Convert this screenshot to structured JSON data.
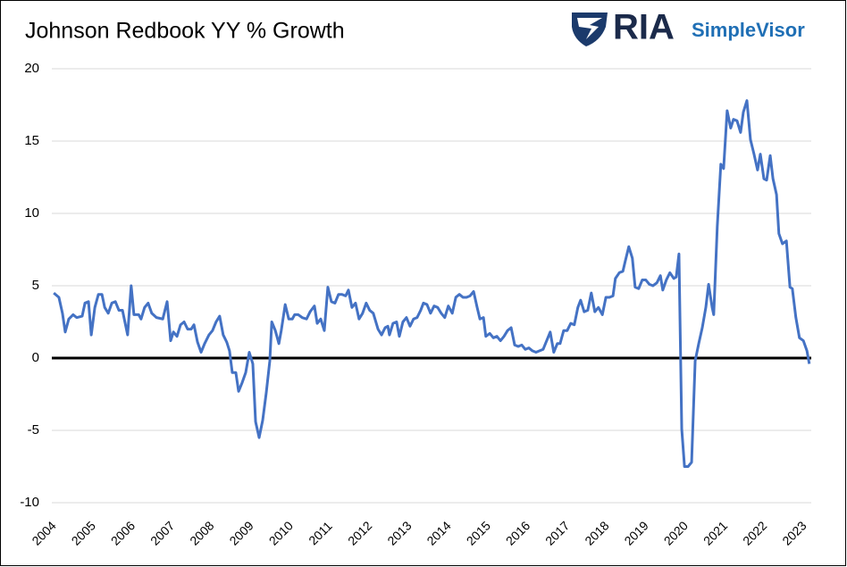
{
  "logo": {
    "primary": "RIA",
    "secondary": "SimpleVisor"
  },
  "chart_data": {
    "type": "line",
    "title": "Johnson Redbook YY % Growth",
    "color": "#4472c4",
    "x": [
      2004.23,
      2004.36,
      2004.45,
      2004.52,
      2004.61,
      2004.72,
      2004.81,
      2004.95,
      2005.02,
      2005.11,
      2005.18,
      2005.27,
      2005.36,
      2005.45,
      2005.52,
      2005.61,
      2005.7,
      2005.79,
      2005.88,
      2005.97,
      2006.1,
      2006.19,
      2006.26,
      2006.38,
      2006.44,
      2006.53,
      2006.62,
      2006.71,
      2006.83,
      2006.99,
      2007.1,
      2007.19,
      2007.26,
      2007.35,
      2007.44,
      2007.53,
      2007.62,
      2007.71,
      2007.78,
      2007.87,
      2007.96,
      2008.05,
      2008.16,
      2008.25,
      2008.34,
      2008.43,
      2008.52,
      2008.61,
      2008.68,
      2008.75,
      2008.84,
      2008.91,
      2009.0,
      2009.09,
      2009.18,
      2009.27,
      2009.34,
      2009.43,
      2009.52,
      2009.61,
      2009.7,
      2009.75,
      2009.84,
      2009.93,
      2009.99,
      2010.09,
      2010.18,
      2010.27,
      2010.33,
      2010.42,
      2010.52,
      2010.63,
      2010.72,
      2010.83,
      2010.9,
      2010.99,
      2011.08,
      2011.17,
      2011.26,
      2011.35,
      2011.44,
      2011.53,
      2011.62,
      2011.69,
      2011.78,
      2011.87,
      2011.96,
      2012.05,
      2012.14,
      2012.23,
      2012.32,
      2012.44,
      2012.53,
      2012.62,
      2012.69,
      2012.73,
      2012.82,
      2012.91,
      2012.98,
      2013.07,
      2013.16,
      2013.25,
      2013.34,
      2013.43,
      2013.52,
      2013.59,
      2013.68,
      2013.77,
      2013.86,
      2013.95,
      2014.04,
      2014.13,
      2014.22,
      2014.32,
      2014.41,
      2014.5,
      2014.59,
      2014.68,
      2014.77,
      2014.86,
      2014.95,
      2015.02,
      2015.11,
      2015.17,
      2015.27,
      2015.36,
      2015.45,
      2015.54,
      2015.63,
      2015.72,
      2015.81,
      2015.9,
      2015.99,
      2016.08,
      2016.17,
      2016.26,
      2016.35,
      2016.44,
      2016.53,
      2016.62,
      2016.71,
      2016.8,
      2016.89,
      2016.98,
      2017.05,
      2017.14,
      2017.23,
      2017.32,
      2017.41,
      2017.5,
      2017.57,
      2017.66,
      2017.75,
      2017.84,
      2017.93,
      2018.02,
      2018.12,
      2018.21,
      2018.3,
      2018.39,
      2018.45,
      2018.55,
      2018.64,
      2018.7,
      2018.79,
      2018.88,
      2018.95,
      2019.04,
      2019.13,
      2019.22,
      2019.31,
      2019.4,
      2019.5,
      2019.59,
      2019.65,
      2019.74,
      2019.83,
      2019.93,
      2019.99,
      2020.06,
      2020.13,
      2020.2,
      2020.29,
      2020.38,
      2020.47,
      2020.56,
      2020.65,
      2020.74,
      2020.81,
      2020.9,
      2020.94,
      2021.03,
      2021.12,
      2021.19,
      2021.28,
      2021.37,
      2021.44,
      2021.53,
      2021.62,
      2021.69,
      2021.78,
      2021.87,
      2021.96,
      2022.05,
      2022.12,
      2022.21,
      2022.28,
      2022.37,
      2022.44,
      2022.53,
      2022.59,
      2022.68,
      2022.78,
      2022.87,
      2022.93,
      2023.02,
      2023.11,
      2023.21,
      2023.3,
      2023.36
    ],
    "values": [
      4.5,
      4.2,
      3.1,
      1.8,
      2.7,
      3.0,
      2.8,
      2.9,
      3.8,
      3.9,
      1.6,
      3.5,
      4.4,
      4.4,
      3.5,
      3.1,
      3.8,
      3.9,
      3.3,
      3.3,
      1.6,
      5.0,
      3.0,
      3.0,
      2.7,
      3.5,
      3.8,
      3.1,
      2.8,
      2.7,
      3.9,
      1.2,
      1.8,
      1.5,
      2.3,
      2.5,
      2.0,
      2.0,
      2.3,
      1.1,
      0.4,
      1.0,
      1.6,
      1.9,
      2.5,
      2.9,
      1.6,
      1.1,
      0.5,
      -1.0,
      -1.0,
      -2.3,
      -1.7,
      -1.0,
      0.4,
      -0.4,
      -4.4,
      -5.5,
      -4.3,
      -2.4,
      -0.2,
      2.5,
      1.9,
      1.0,
      1.9,
      3.7,
      2.7,
      2.7,
      3.0,
      3.0,
      2.8,
      2.7,
      3.2,
      3.6,
      2.4,
      2.7,
      1.9,
      4.9,
      3.9,
      3.8,
      4.4,
      4.4,
      4.3,
      4.7,
      3.5,
      3.8,
      2.7,
      3.1,
      3.8,
      3.3,
      3.1,
      2.0,
      1.6,
      2.1,
      2.2,
      1.6,
      2.4,
      2.5,
      1.5,
      2.5,
      2.8,
      2.2,
      2.7,
      2.8,
      3.3,
      3.8,
      3.7,
      3.1,
      3.6,
      3.5,
      3.1,
      2.8,
      3.6,
      3.1,
      4.2,
      4.4,
      4.2,
      4.2,
      4.3,
      4.6,
      3.5,
      2.7,
      2.8,
      1.5,
      1.7,
      1.4,
      1.5,
      1.2,
      1.5,
      1.9,
      2.1,
      0.9,
      0.8,
      0.9,
      0.6,
      0.7,
      0.5,
      0.4,
      0.5,
      0.6,
      1.2,
      1.8,
      0.4,
      1.0,
      1.0,
      1.9,
      1.9,
      2.4,
      2.3,
      3.5,
      4.0,
      3.2,
      3.3,
      4.5,
      3.2,
      3.5,
      3.0,
      4.2,
      4.2,
      4.3,
      5.5,
      5.9,
      6.0,
      6.7,
      7.7,
      6.9,
      4.9,
      4.8,
      5.4,
      5.4,
      5.1,
      5.0,
      5.2,
      5.7,
      4.7,
      5.4,
      5.9,
      5.5,
      5.6,
      7.2,
      -4.9,
      -7.5,
      -7.5,
      -7.2,
      -0.2,
      1.0,
      2.1,
      3.5,
      5.1,
      3.5,
      3.0,
      9.1,
      13.4,
      13.1,
      17.1,
      15.9,
      16.5,
      16.4,
      15.6,
      17.0,
      17.8,
      15.1,
      14.1,
      13.0,
      14.1,
      12.4,
      12.3,
      14.0,
      12.4,
      11.3,
      8.6,
      7.9,
      8.1,
      4.9,
      4.8,
      2.8,
      1.4,
      1.2,
      0.5,
      -0.4
    ],
    "xlim": [
      2004,
      2023.5
    ],
    "xticks": [
      2004,
      2005,
      2006,
      2007,
      2008,
      2009,
      2010,
      2011,
      2012,
      2013,
      2014,
      2015,
      2016,
      2017,
      2018,
      2019,
      2020,
      2021,
      2022,
      2023
    ],
    "ylim": [
      -10,
      20
    ],
    "yticks": [
      -10,
      -5,
      0,
      5,
      10,
      15,
      20
    ],
    "grid": true,
    "reference_line": 0
  }
}
